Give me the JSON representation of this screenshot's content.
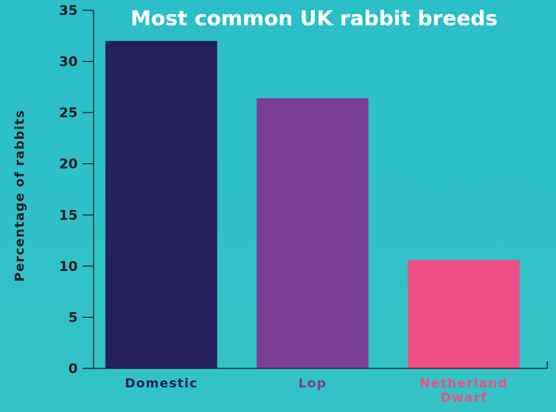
{
  "chart_data": {
    "type": "bar",
    "title": "Most common UK rabbit breeds",
    "xlabel": "",
    "ylabel": "Percentage of rabbits",
    "categories": [
      "Domestic",
      "Lop",
      "Netherland Dwarf"
    ],
    "category_lines": [
      [
        "Domestic"
      ],
      [
        "Lop"
      ],
      [
        "Netherland",
        "Dwarf"
      ]
    ],
    "values": [
      32,
      26.4,
      10.6
    ],
    "colors": [
      "#24205e",
      "#7c3f96",
      "#ef4f86"
    ],
    "ylim": [
      0,
      35
    ],
    "yticks": [
      "0",
      "5",
      "10",
      "15",
      "20",
      "25",
      "30",
      "35"
    ],
    "grid": false,
    "background": "#2ebfc7"
  }
}
